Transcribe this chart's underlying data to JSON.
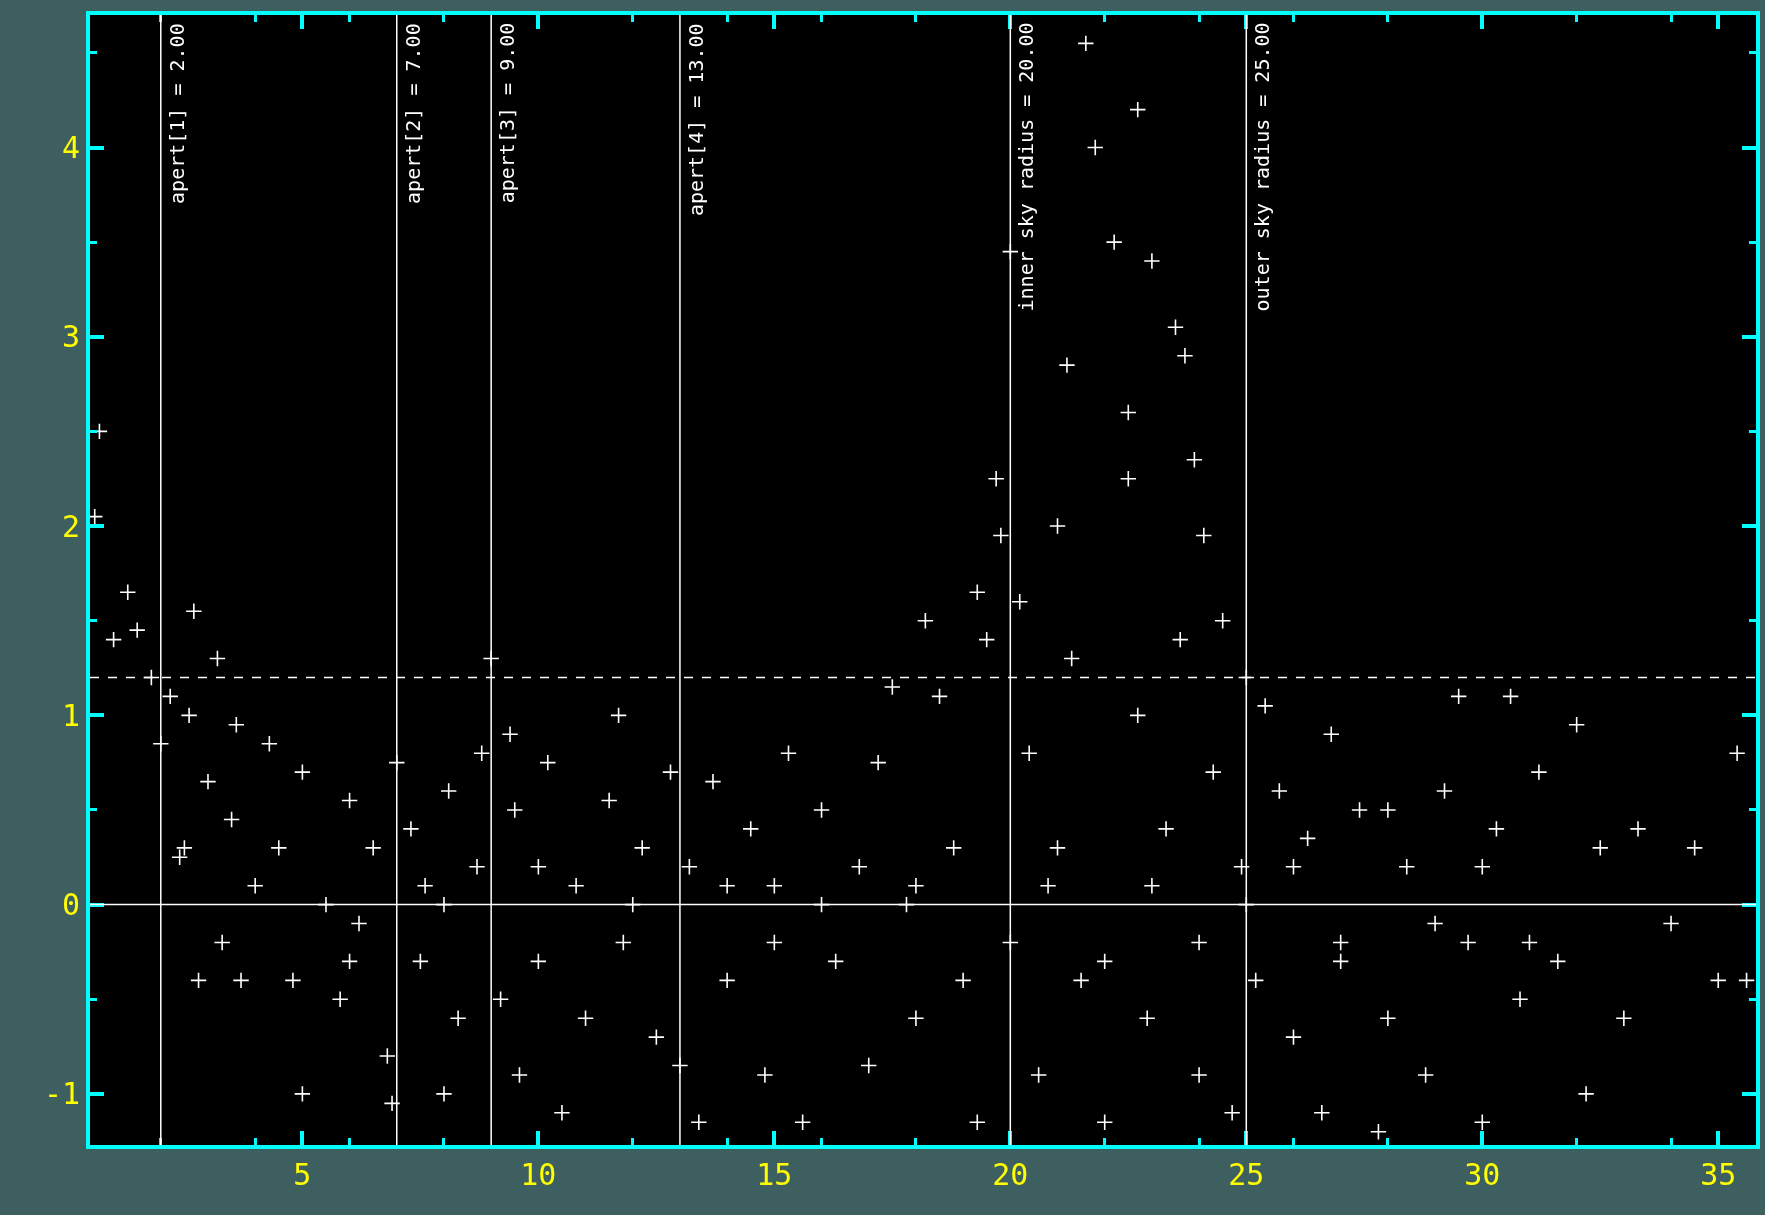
{
  "chart_data": {
    "type": "scatter",
    "marker": "cross",
    "grid": false,
    "xlim": [
      0.5,
      35.8
    ],
    "ylim": [
      -1.27,
      4.7
    ],
    "xticks": [
      5,
      10,
      15,
      20,
      25,
      30,
      35
    ],
    "yticks": [
      -1,
      0,
      1,
      2,
      3,
      4
    ],
    "series": [
      {
        "color": "#ffffff",
        "x": [
          0.7,
          0.6,
          1.3,
          1.5,
          1.0,
          1.8,
          2.0,
          2.2,
          2.7,
          2.6,
          3.2,
          3.0,
          2.5,
          2.4,
          3.5,
          3.6,
          4.3,
          2.8,
          3.3,
          3.7,
          4.0,
          4.5,
          4.8,
          5.0,
          5.5,
          5.0,
          5.8,
          6.0,
          6.2,
          6.5,
          6.8,
          6.9,
          7.0,
          7.3,
          7.5,
          7.6,
          8.0,
          8.1,
          8.3,
          8.7,
          8.8,
          9.0,
          9.2,
          9.4,
          9.6,
          9.5,
          10.0,
          10.2,
          10.5,
          10.8,
          11.0,
          11.5,
          11.7,
          11.8,
          12.2,
          12.5,
          12.8,
          13.0,
          13.2,
          13.4,
          13.7,
          14.0,
          14.5,
          14.8,
          15.0,
          15.3,
          15.6,
          16.0,
          16.3,
          16.8,
          17.0,
          17.2,
          17.5,
          17.8,
          18.0,
          18.2,
          18.5,
          18.8,
          19.0,
          19.3,
          19.5,
          19.7,
          19.8,
          19.3,
          20.0,
          20.2,
          20.4,
          20.6,
          20.8,
          21.0,
          21.2,
          21.3,
          21.5,
          21.6,
          21.8,
          22.0,
          22.2,
          22.5,
          22.5,
          22.7,
          22.7,
          22.9,
          23.0,
          23.3,
          23.5,
          23.6,
          23.7,
          23.9,
          24.0,
          24.1,
          24.3,
          24.5,
          24.7,
          24.9,
          25.0,
          25.2,
          25.4,
          25.7,
          26.0,
          26.3,
          26.6,
          26.8,
          27.0,
          27.4,
          27.8,
          28.0,
          28.4,
          28.8,
          29.2,
          29.5,
          29.7,
          30.0,
          30.3,
          30.6,
          30.8,
          31.2,
          31.6,
          32.0,
          32.2,
          32.5,
          33.0,
          33.3,
          34.0,
          34.5,
          35.0,
          35.4,
          35.6,
          15.0,
          16.0,
          18.0,
          20.0,
          21.0,
          22.0,
          23.0,
          24.0,
          25.0,
          26.0,
          27.0,
          28.0,
          29.0,
          30.0,
          31.0,
          12.0,
          10.0,
          8.0,
          6.0,
          14.0
        ],
        "values": [
          2.5,
          2.05,
          1.65,
          1.45,
          1.4,
          1.2,
          0.85,
          1.1,
          1.55,
          1.0,
          1.3,
          0.65,
          0.3,
          0.25,
          0.45,
          0.95,
          0.85,
          -0.4,
          -0.2,
          -0.4,
          0.1,
          0.3,
          -0.4,
          0.7,
          0.0,
          -1.0,
          -0.5,
          0.55,
          -0.1,
          0.3,
          -0.8,
          -1.05,
          0.75,
          0.4,
          -0.3,
          0.1,
          -1.0,
          0.6,
          -0.6,
          0.2,
          0.8,
          1.3,
          -0.5,
          0.9,
          -0.9,
          0.5,
          -0.3,
          0.75,
          -1.1,
          0.1,
          -0.6,
          0.55,
          1.0,
          -0.2,
          0.3,
          -0.7,
          0.7,
          -0.85,
          0.2,
          -1.15,
          0.65,
          -0.4,
          0.4,
          -0.9,
          0.1,
          0.8,
          -1.15,
          0.5,
          -0.3,
          0.2,
          -0.85,
          0.75,
          1.15,
          0.0,
          -0.6,
          1.5,
          1.1,
          0.3,
          -0.4,
          1.65,
          1.4,
          2.25,
          1.95,
          -1.15,
          3.45,
          1.6,
          0.8,
          -0.9,
          0.1,
          2.0,
          2.85,
          1.3,
          -0.4,
          4.55,
          4.0,
          -1.15,
          3.5,
          2.6,
          2.25,
          1.0,
          4.2,
          -0.6,
          3.4,
          0.4,
          3.05,
          1.4,
          2.9,
          2.35,
          -0.9,
          1.95,
          0.7,
          1.5,
          -1.1,
          0.2,
          1.2,
          -0.4,
          1.05,
          0.6,
          -0.7,
          0.35,
          -1.1,
          0.9,
          -0.2,
          0.5,
          -1.2,
          -0.6,
          0.2,
          -0.9,
          0.6,
          1.1,
          -0.2,
          -1.15,
          0.4,
          1.1,
          -0.5,
          0.7,
          -0.3,
          0.95,
          -1.0,
          0.3,
          -0.6,
          0.4,
          -0.1,
          0.3,
          -0.4,
          0.8,
          -0.4,
          -0.2,
          0.0,
          0.1,
          -0.2,
          0.3,
          -0.3,
          0.1,
          -0.2,
          0.0,
          0.2,
          -0.3,
          0.5,
          -0.1,
          0.2,
          -0.2,
          0.0,
          0.2,
          0.0,
          -0.3,
          0.1
        ]
      }
    ],
    "ref_lines": [
      {
        "axis": "x",
        "value": 2,
        "label": "apert[1] = 2.00",
        "color": "#ffffff",
        "line_style": "solid"
      },
      {
        "axis": "x",
        "value": 7,
        "label": "apert[2] = 7.00",
        "color": "#ffffff",
        "line_style": "solid"
      },
      {
        "axis": "x",
        "value": 9,
        "label": "apert[3] = 9.00",
        "color": "#ffffff",
        "line_style": "solid"
      },
      {
        "axis": "x",
        "value": 13,
        "label": "apert[4] = 13.00",
        "color": "#ffffff",
        "line_style": "solid"
      },
      {
        "axis": "x",
        "value": 20,
        "label": "inner sky radius = 20.00",
        "color": "#ffffff",
        "line_style": "solid"
      },
      {
        "axis": "x",
        "value": 25,
        "label": "outer sky radius = 25.00",
        "color": "#ffffff",
        "line_style": "solid"
      },
      {
        "axis": "y",
        "value": 1.2,
        "color": "#ffffff",
        "line_style": "dashed"
      },
      {
        "axis": "y",
        "value": 0,
        "color": "#ffffff",
        "line_style": "solid"
      }
    ]
  }
}
